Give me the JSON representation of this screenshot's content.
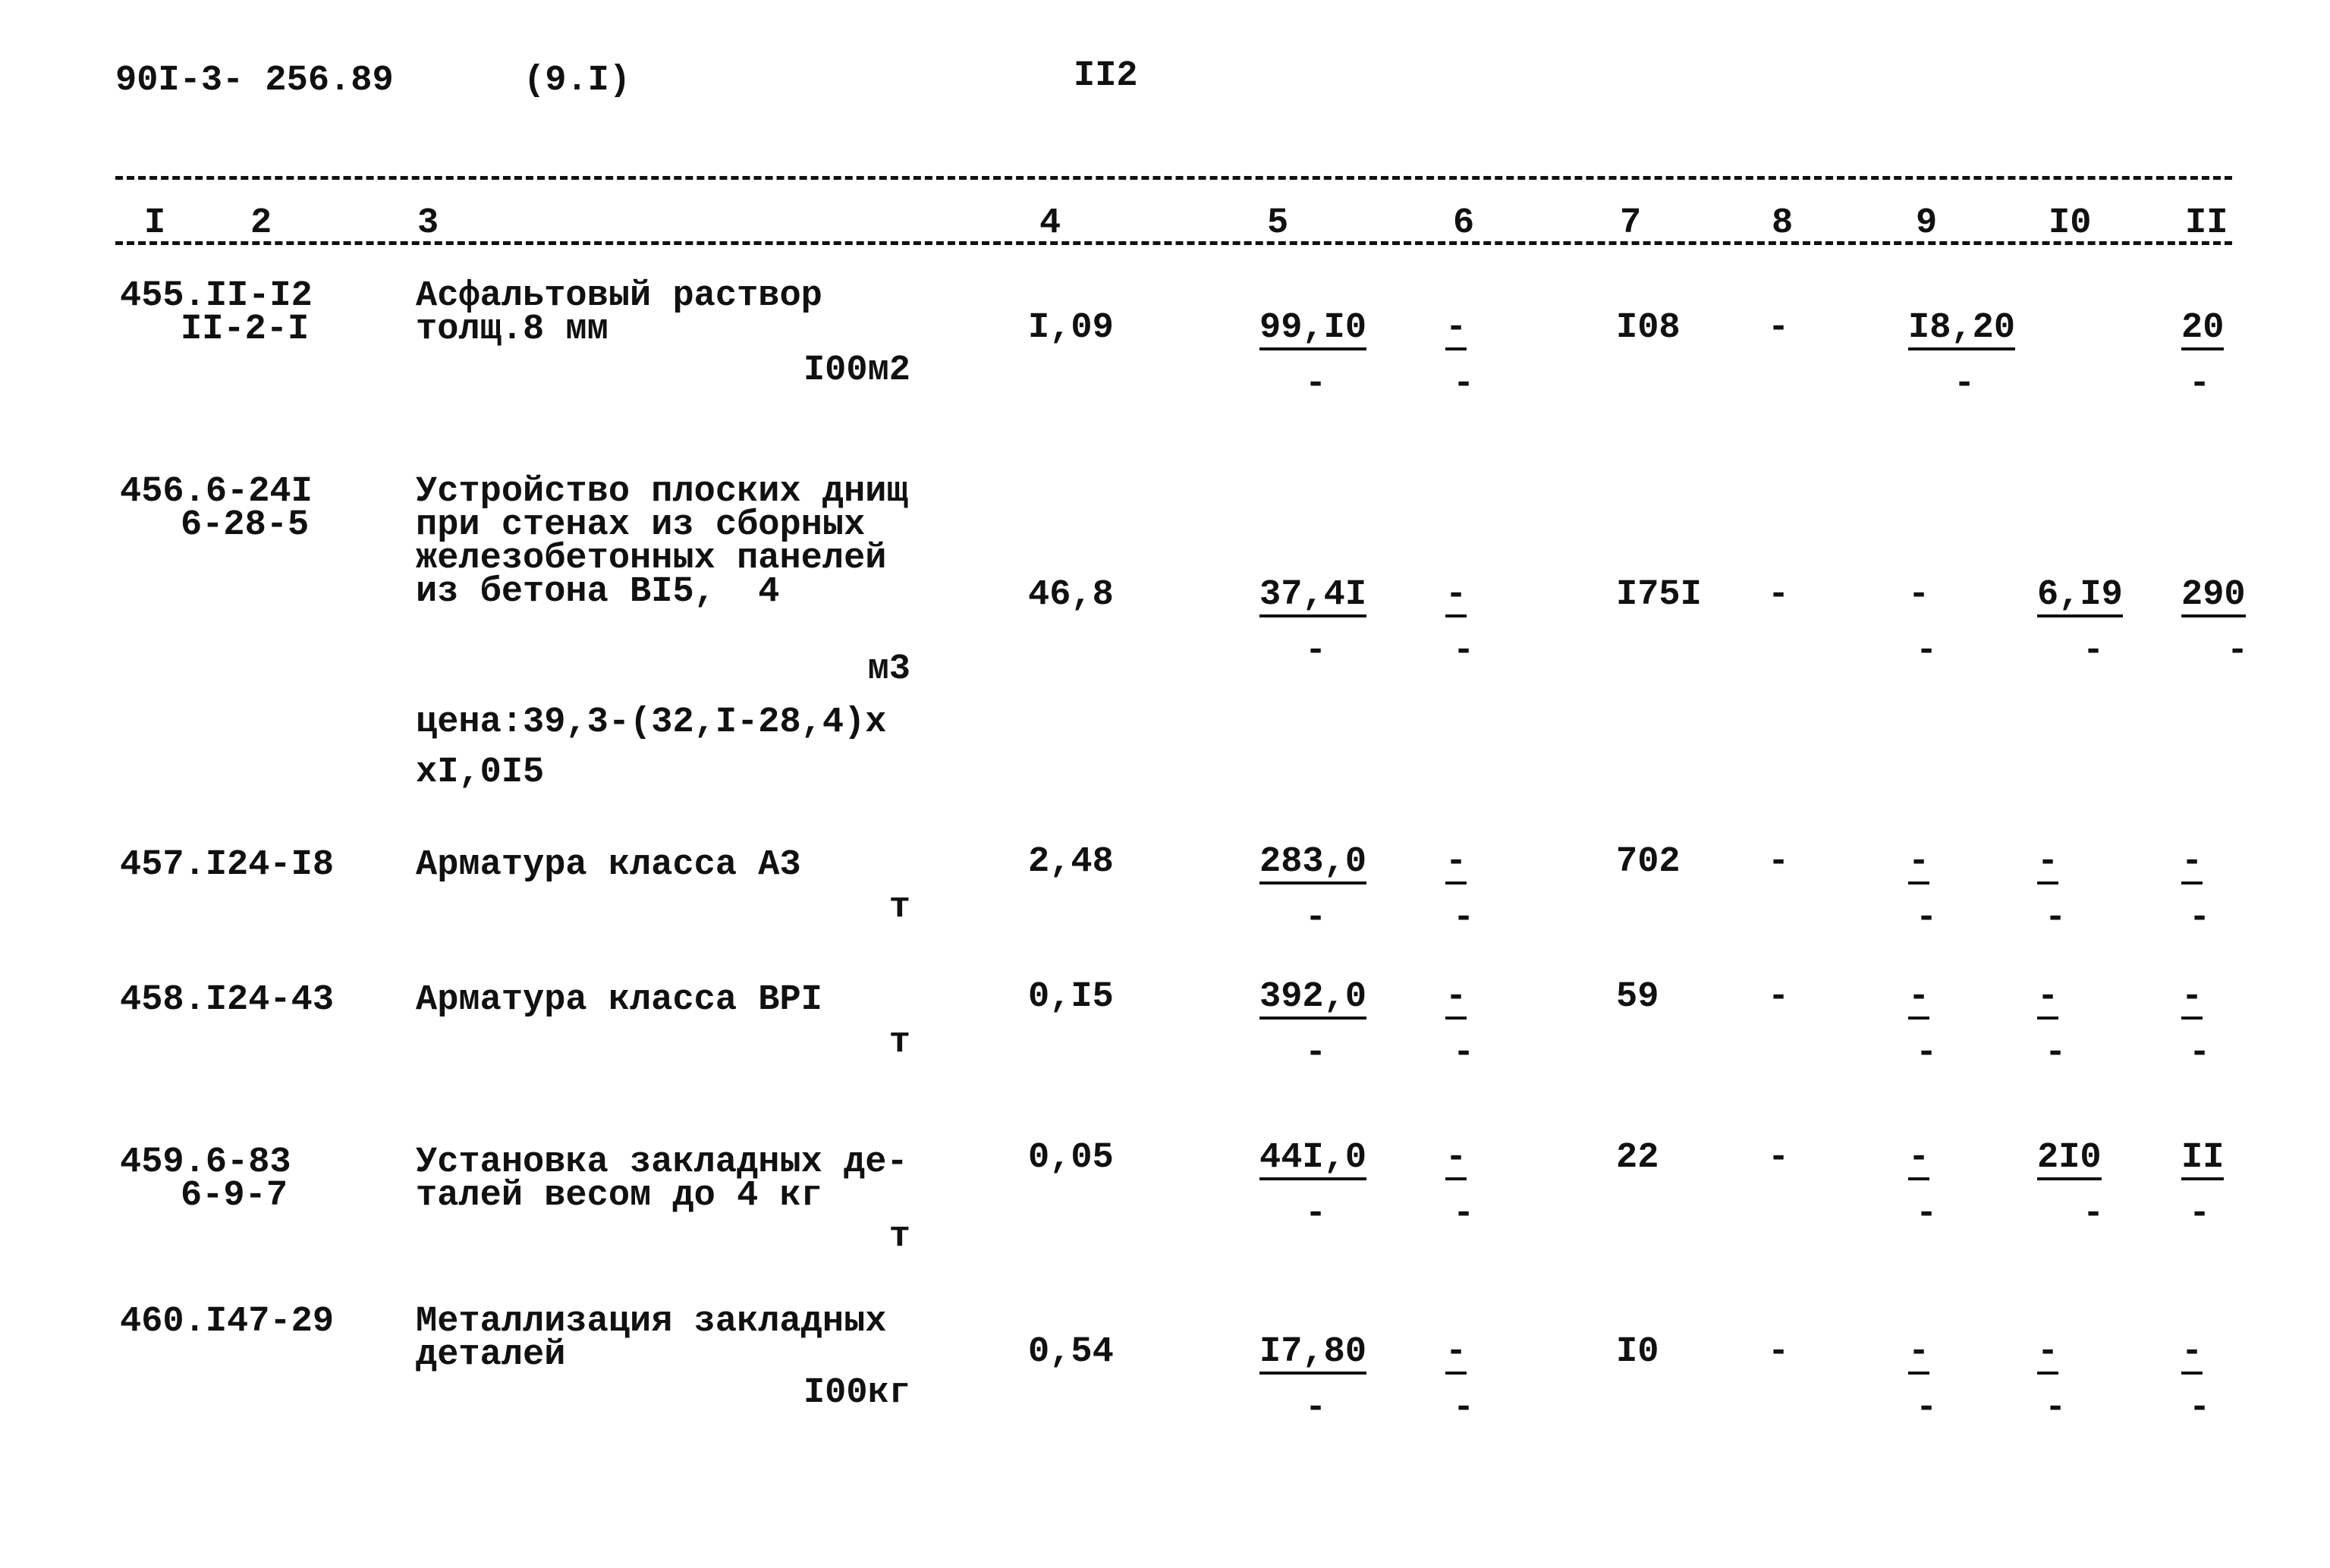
{
  "header": {
    "doc_code": "90I-3- 256.89",
    "section": "(9.I)",
    "page": "II2"
  },
  "columns": [
    "I",
    "2",
    "3",
    "4",
    "5",
    "6",
    "7",
    "8",
    "9",
    "I0",
    "II"
  ],
  "rows": [
    {
      "id": [
        "455.II-I2",
        "II-2-I"
      ],
      "desc": [
        "Асфальтовый раствор",
        "толщ.8 мм"
      ],
      "unit": "I00м2",
      "note": [],
      "cells": [
        {
          "top": "I,09",
          "u": false,
          "bottom": ""
        },
        {
          "top": "99,I0",
          "u": true,
          "bottom": "-"
        },
        {
          "top": "-",
          "u": true,
          "bottom": "-"
        },
        {
          "top": "I08",
          "u": false,
          "bottom": ""
        },
        {
          "top": "-",
          "u": false,
          "bottom": ""
        },
        {
          "top": "I8,20",
          "u": true,
          "bottom": "-"
        },
        {
          "top": "",
          "u": false,
          "bottom": ""
        },
        {
          "top": "20",
          "u": true,
          "bottom": "-"
        }
      ]
    },
    {
      "id": [
        "456.6-24I",
        "6-28-5"
      ],
      "desc": [
        "Устройство плоских днищ",
        "при стенах из сборных",
        "железобетонных панелей",
        "из бетона BI5,  4"
      ],
      "unit": "м3",
      "note": [
        "цена:39,3-(32,I-28,4)x",
        "xI,0I5"
      ],
      "cells": [
        {
          "top": "46,8",
          "u": false,
          "bottom": ""
        },
        {
          "top": "37,4I",
          "u": true,
          "bottom": "-"
        },
        {
          "top": "-",
          "u": true,
          "bottom": "-"
        },
        {
          "top": "I75I",
          "u": false,
          "bottom": ""
        },
        {
          "top": "-",
          "u": false,
          "bottom": ""
        },
        {
          "top": "-",
          "u": false,
          "bottom": "-"
        },
        {
          "top": "6,I9",
          "u": true,
          "bottom": "-"
        },
        {
          "top": "290",
          "u": true,
          "bottom": "-"
        }
      ]
    },
    {
      "id": [
        "457.I24-I8"
      ],
      "desc": [
        "Арматура класса A3"
      ],
      "unit": "т",
      "note": [],
      "cells": [
        {
          "top": "2,48",
          "u": false,
          "bottom": ""
        },
        {
          "top": "283,0",
          "u": true,
          "bottom": "-"
        },
        {
          "top": "-",
          "u": true,
          "bottom": "-"
        },
        {
          "top": "702",
          "u": false,
          "bottom": ""
        },
        {
          "top": "-",
          "u": false,
          "bottom": ""
        },
        {
          "top": "-",
          "u": true,
          "bottom": "-"
        },
        {
          "top": "-",
          "u": true,
          "bottom": "-"
        },
        {
          "top": "-",
          "u": true,
          "bottom": "-"
        }
      ]
    },
    {
      "id": [
        "458.I24-43"
      ],
      "desc": [
        "Арматура класса BPI"
      ],
      "unit": "т",
      "note": [],
      "cells": [
        {
          "top": "0,I5",
          "u": false,
          "bottom": ""
        },
        {
          "top": "392,0",
          "u": true,
          "bottom": "-"
        },
        {
          "top": "-",
          "u": true,
          "bottom": "-"
        },
        {
          "top": "59",
          "u": false,
          "bottom": ""
        },
        {
          "top": "-",
          "u": false,
          "bottom": ""
        },
        {
          "top": "-",
          "u": true,
          "bottom": "-"
        },
        {
          "top": "-",
          "u": true,
          "bottom": "-"
        },
        {
          "top": "-",
          "u": true,
          "bottom": "-"
        }
      ]
    },
    {
      "id": [
        "459.6-83",
        "6-9-7"
      ],
      "desc": [
        "Установка закладных де-",
        "талей весом до 4 кг"
      ],
      "unit": "т",
      "note": [],
      "cells": [
        {
          "top": "0,05",
          "u": false,
          "bottom": ""
        },
        {
          "top": "44I,0",
          "u": true,
          "bottom": "-"
        },
        {
          "top": "-",
          "u": true,
          "bottom": "-"
        },
        {
          "top": "22",
          "u": false,
          "bottom": ""
        },
        {
          "top": "-",
          "u": false,
          "bottom": ""
        },
        {
          "top": "-",
          "u": true,
          "bottom": "-"
        },
        {
          "top": "2I0",
          "u": true,
          "bottom": "-"
        },
        {
          "top": "II",
          "u": true,
          "bottom": "-"
        }
      ]
    },
    {
      "id": [
        "460.I47-29"
      ],
      "desc": [
        "Металлизация закладных",
        "деталей"
      ],
      "unit": "I00кг",
      "note": [],
      "cells": [
        {
          "top": "0,54",
          "u": false,
          "bottom": ""
        },
        {
          "top": "I7,80",
          "u": true,
          "bottom": "-"
        },
        {
          "top": "-",
          "u": true,
          "bottom": "-"
        },
        {
          "top": "I0",
          "u": false,
          "bottom": ""
        },
        {
          "top": "-",
          "u": false,
          "bottom": ""
        },
        {
          "top": "-",
          "u": true,
          "bottom": "-"
        },
        {
          "top": "-",
          "u": true,
          "bottom": "-"
        },
        {
          "top": "-",
          "u": true,
          "bottom": "-"
        }
      ]
    }
  ]
}
